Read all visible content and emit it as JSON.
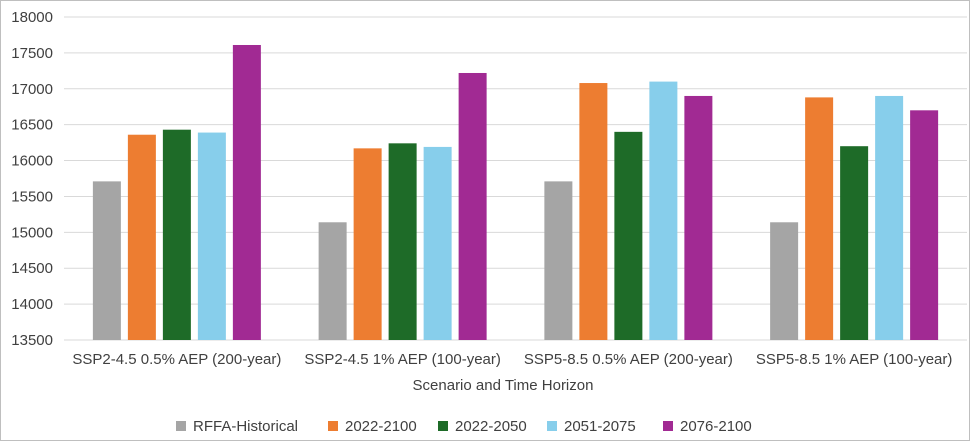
{
  "chart_data": {
    "type": "bar",
    "title": "",
    "xlabel": "Scenario and Time Horizon",
    "ylabel": "",
    "ylim": [
      13500,
      18000
    ],
    "yticks": [
      13500,
      14000,
      14500,
      15000,
      15500,
      16000,
      16500,
      17000,
      17500,
      18000
    ],
    "ytick_labels": [
      "13500",
      "14000",
      "14500",
      "15000",
      "15500",
      "16000",
      "16500",
      "17000",
      "17500",
      "18000"
    ],
    "grid": true,
    "legend_position": "bottom",
    "categories": [
      "SSP2-4.5 0.5% AEP (200-year)",
      "SSP2-4.5 1% AEP (100-year)",
      "SSP5-8.5 0.5% AEP (200-year)",
      "SSP5-8.5 1% AEP (100-year)"
    ],
    "series": [
      {
        "name": "RFFA-Historical",
        "color": "#a5a5a5",
        "values": [
          15710,
          15140,
          15710,
          15140
        ]
      },
      {
        "name": "2022-2100",
        "color": "#ed7d31",
        "values": [
          16360,
          16170,
          17080,
          16880
        ]
      },
      {
        "name": "2022-2050",
        "color": "#1e6b28",
        "values": [
          16430,
          16240,
          16400,
          16200
        ]
      },
      {
        "name": "2051-2075",
        "color": "#87ceeb",
        "values": [
          16390,
          16190,
          17100,
          16900
        ]
      },
      {
        "name": "2076-2100",
        "color": "#a12a93",
        "values": [
          17610,
          17220,
          16900,
          16700
        ]
      }
    ]
  }
}
